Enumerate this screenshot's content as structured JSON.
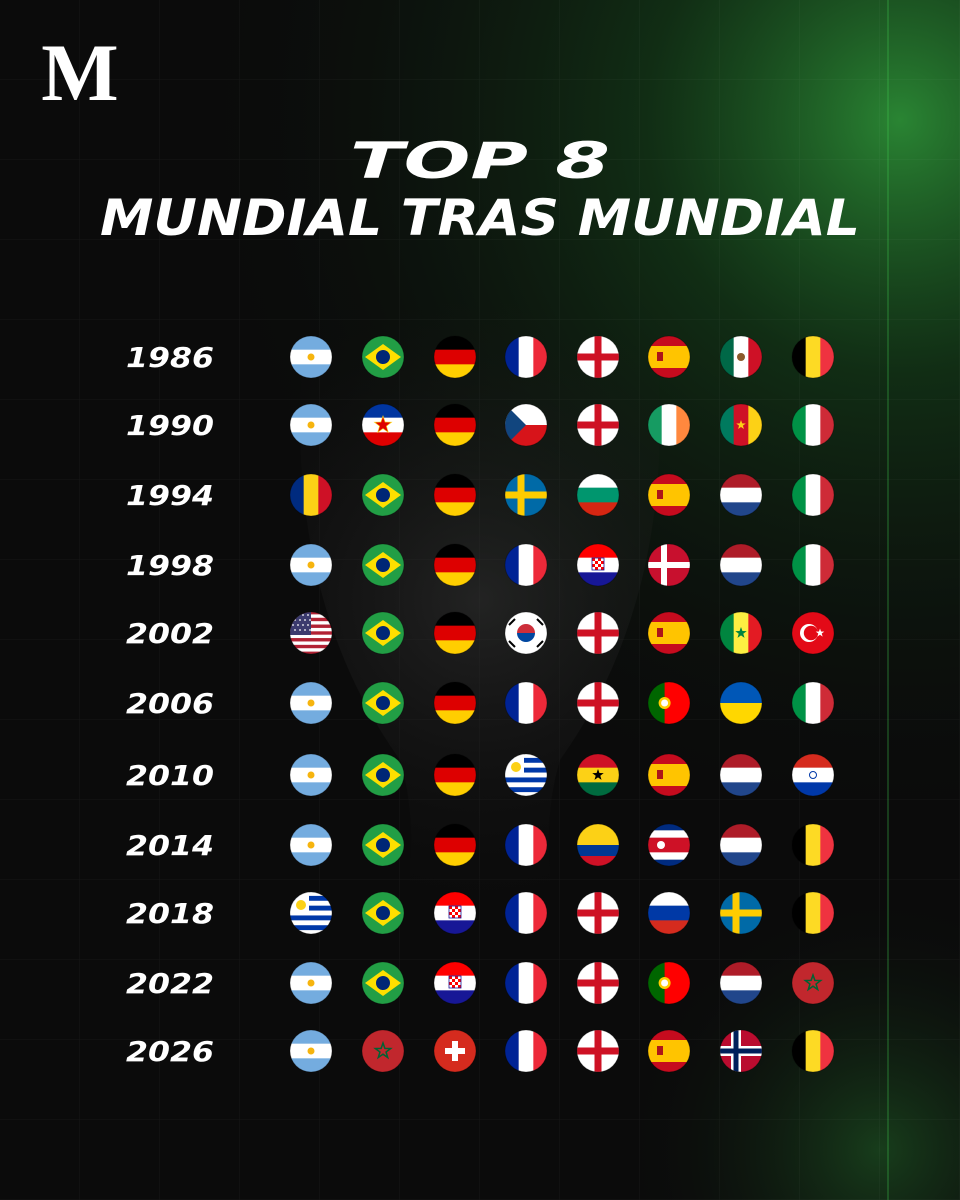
{
  "logo": "M",
  "title": {
    "line1": "TOP 8",
    "line2": "MUNDIAL TRAS MUNDIAL"
  },
  "years": [
    "1986",
    "1990",
    "1994",
    "1998",
    "2002",
    "2006",
    "2010",
    "2014",
    "2018",
    "2022",
    "2026"
  ]
}
